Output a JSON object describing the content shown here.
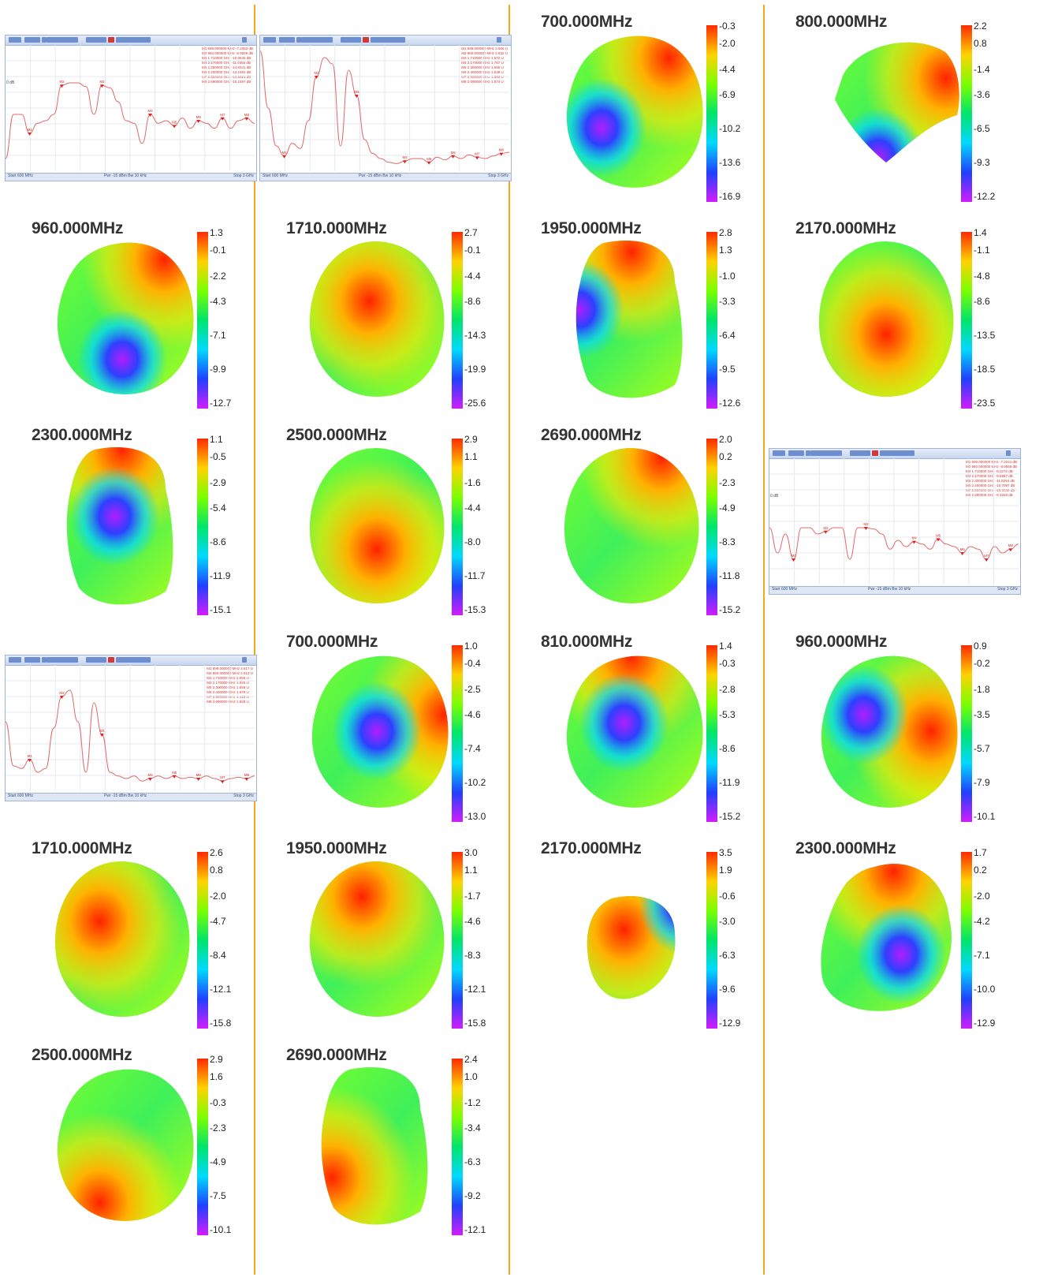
{
  "colorbar_gradient": [
    "#ff2a00",
    "#ffd200",
    "#7bff00",
    "#00e56b",
    "#00d9ff",
    "#2040ff",
    "#d21dff"
  ],
  "separator_color": "#f3a81a",
  "trace_color": "#e06a6a",
  "cells": [
    {
      "kind": "plot",
      "variant": "db",
      "ref": "0 dB",
      "markers": [
        "M1",
        "M2",
        "M3",
        "M4",
        "M5",
        "M6",
        "M7",
        "M8"
      ],
      "mtable": [
        "M1  699.000000 MHz  -7.2353 dB",
        "M2  960.000000 MHz  -6.9326 dB",
        "M3  1.710000 GHz  -10.0545 dB",
        "M4  2.170000 GHz  -11.0356 dB",
        "M5  2.300000 GHz  -14.8341 dB",
        "M6  2.400000 GHz  -13.2481 dB",
        "M7  2.500000 GHz  -13.8521 dB",
        "M8  2.690000 GHz  -15.1597 dB"
      ],
      "status_start": "Start 600 MHz",
      "status_mid": "Pwr -15 dBm  Bw 10 kHz",
      "status_stop": "Stop 3 GHz",
      "trace": [
        0.9,
        0.55,
        0.55,
        0.7,
        0.62,
        0.6,
        0.55,
        0.32,
        0.3,
        0.3,
        0.33,
        0.55,
        0.32,
        0.34,
        0.45,
        0.6,
        0.62,
        0.78,
        0.55,
        0.62,
        0.6,
        0.64,
        0.58,
        0.66,
        0.6,
        0.62,
        0.66,
        0.58,
        0.66,
        0.6,
        0.58,
        0.62
      ]
    },
    {
      "kind": "plot",
      "variant": "swr",
      "ref": "",
      "markers": [
        "M1",
        "M2",
        "M3",
        "M4",
        "M5",
        "M6",
        "M7",
        "M8"
      ],
      "mtable": [
        "M1  699.000000 MHz  2.506 U",
        "M2  960.000000 MHz  2.632 U",
        "M3  1.710000 GHz  1.572 U",
        "M4  2.170000 GHz  1.767 U",
        "M5  2.300000 GHz  1.596 U",
        "M6  2.400000 GHz  1.539 U",
        "M7  2.500000 GHz  1.526 U",
        "M8  2.690000 GHz  1.574 U"
      ],
      "status_start": "Start 600 MHz",
      "status_mid": "Pwr -15 dBm  Bw 10 kHz",
      "status_stop": "Stop 3 GHz",
      "trace": [
        0.05,
        0.5,
        0.8,
        0.88,
        0.78,
        0.82,
        0.6,
        0.25,
        0.1,
        0.15,
        0.8,
        0.2,
        0.4,
        0.75,
        0.86,
        0.9,
        0.93,
        0.94,
        0.92,
        0.9,
        0.9,
        0.93,
        0.89,
        0.91,
        0.88,
        0.9,
        0.87,
        0.89,
        0.9,
        0.88,
        0.86,
        0.85
      ]
    },
    {
      "kind": "pattern",
      "freq": "700.000MHz",
      "ticks": [
        "-0.3",
        "-2.0",
        "-4.4",
        "-6.9",
        "-10.2",
        "-13.6",
        "-16.9"
      ],
      "hot": [
        0.75,
        0.18
      ],
      "cold": [
        0.3,
        0.6
      ],
      "shape": "round"
    },
    {
      "kind": "pattern",
      "freq": "800.000MHz",
      "ticks": [
        "2.2",
        "0.8",
        "-1.4",
        "-3.6",
        "-6.5",
        "-9.3",
        "-12.2"
      ],
      "hot": [
        0.9,
        0.3
      ],
      "cold": [
        0.45,
        0.78
      ],
      "shape": "half"
    },
    {
      "kind": "pattern",
      "freq": "960.000MHz",
      "ticks": [
        "1.3",
        "-0.1",
        "-2.2",
        "-4.3",
        "-7.1",
        "-9.9",
        "-12.7"
      ],
      "hot": [
        0.78,
        0.15
      ],
      "cold": [
        0.5,
        0.75
      ],
      "shape": "round"
    },
    {
      "kind": "pattern",
      "freq": "1710.000MHz",
      "ticks": [
        "2.7",
        "-0.1",
        "-4.4",
        "-8.6",
        "-14.3",
        "-19.9",
        "-25.6"
      ],
      "hot": [
        0.45,
        0.4
      ],
      "cold": null,
      "shape": "egg"
    },
    {
      "kind": "pattern",
      "freq": "1950.000MHz",
      "ticks": [
        "2.8",
        "1.3",
        "-1.0",
        "-3.3",
        "-6.4",
        "-9.5",
        "-12.6"
      ],
      "hot": [
        0.5,
        0.1
      ],
      "cold": [
        0.15,
        0.45
      ],
      "shape": "tall"
    },
    {
      "kind": "pattern",
      "freq": "2170.000MHz",
      "ticks": [
        "1.4",
        "-1.1",
        "-4.8",
        "-8.6",
        "-13.5",
        "-18.5",
        "-23.5"
      ],
      "hot": [
        0.5,
        0.6
      ],
      "cold": null,
      "shape": "egg"
    },
    {
      "kind": "pattern",
      "freq": "2300.000MHz",
      "ticks": [
        "1.1",
        "-0.5",
        "-2.9",
        "-5.4",
        "-8.6",
        "-11.9",
        "-15.1"
      ],
      "hot": [
        0.5,
        0.05
      ],
      "cold": [
        0.45,
        0.45
      ],
      "shape": "tall"
    },
    {
      "kind": "pattern",
      "freq": "2500.000MHz",
      "ticks": [
        "2.9",
        "1.1",
        "-1.6",
        "-4.4",
        "-8.0",
        "-11.7",
        "-15.3"
      ],
      "hot": [
        0.5,
        0.65
      ],
      "cold": null,
      "shape": "egg"
    },
    {
      "kind": "pattern",
      "freq": "2690.000MHz",
      "ticks": [
        "2.0",
        "0.2",
        "-2.3",
        "-4.9",
        "-8.3",
        "-11.8",
        "-15.2"
      ],
      "hot": [
        0.7,
        0.1
      ],
      "cold": null,
      "shape": "egg"
    },
    {
      "kind": "plot",
      "variant": "db",
      "ref": "0 dB",
      "markers": [
        "M1",
        "M2",
        "M3",
        "M4",
        "M5",
        "M6",
        "M7",
        "M8"
      ],
      "mtable": [
        "M1  699.000000 MHz  -7.2241 dB",
        "M2  960.000000 MHz  -8.0558 dB",
        "M3  1.710000 GHz  -8.2272 dB",
        "M4  2.170000 GHz  -9.5867 dB",
        "M5  2.300000 GHz  -11.8294 dB",
        "M6  2.400000 GHz  -10.7097 dB",
        "M7  2.500000 GHz  -15.5036 dB",
        "M8  2.690000 GHz  -9.4258 dB"
      ],
      "status_start": "Start 600 MHz",
      "status_mid": "Pwr -15 dBm  Bw 10 kHz",
      "status_stop": "Stop 3 GHz",
      "trace": [
        0.55,
        0.75,
        0.6,
        0.8,
        0.55,
        0.55,
        0.6,
        0.58,
        0.55,
        0.55,
        0.8,
        0.55,
        0.55,
        0.56,
        0.6,
        0.72,
        0.65,
        0.7,
        0.66,
        0.68,
        0.72,
        0.64,
        0.68,
        0.7,
        0.75,
        0.7,
        0.72,
        0.8,
        0.7,
        0.75,
        0.72,
        0.68
      ]
    },
    {
      "kind": "plot",
      "variant": "swr",
      "ref": "",
      "markers": [
        "M1",
        "M2",
        "M3",
        "M4",
        "M5",
        "M6",
        "M7",
        "M8"
      ],
      "mtable": [
        "M1  699.000000 MHz  2.617 U",
        "M2  960.000000 MHz  2.813 U",
        "M3  1.710000 GHz  2.056 U",
        "M4  2.170000 GHz  1.926 U",
        "M5  2.300000 GHz  1.656 U",
        "M6  2.400000 GHz  1.679 U",
        "M7  2.500000 GHz  1.415 U",
        "M8  2.690000 GHz  1.828 U"
      ],
      "status_start": "Start 600 MHz",
      "status_mid": "Pwr -15 dBm  Bw 10 kHz",
      "status_stop": "Stop 3 GHz",
      "trace": [
        0.45,
        0.8,
        0.82,
        0.75,
        0.85,
        0.82,
        0.5,
        0.25,
        0.2,
        0.45,
        0.85,
        0.3,
        0.55,
        0.85,
        0.88,
        0.9,
        0.88,
        0.92,
        0.9,
        0.88,
        0.9,
        0.88,
        0.9,
        0.89,
        0.9,
        0.88,
        0.9,
        0.92,
        0.9,
        0.89,
        0.9,
        0.88
      ]
    },
    {
      "kind": "pattern",
      "freq": "700.000MHz",
      "ticks": [
        "1.0",
        "-0.4",
        "-2.5",
        "-4.6",
        "-7.4",
        "-10.2",
        "-13.0"
      ],
      "hot": [
        0.95,
        0.4
      ],
      "cold": [
        0.5,
        0.5
      ],
      "shape": "round"
    },
    {
      "kind": "pattern",
      "freq": "810.000MHz",
      "ticks": [
        "1.4",
        "-0.3",
        "-2.8",
        "-5.3",
        "-8.6",
        "-11.9",
        "-15.2"
      ],
      "hot": [
        0.5,
        0.05
      ],
      "cold": [
        0.45,
        0.45
      ],
      "shape": "round"
    },
    {
      "kind": "pattern",
      "freq": "960.000MHz",
      "ticks": [
        "0.9",
        "-0.2",
        "-1.8",
        "-3.5",
        "-5.7",
        "-7.9",
        "-10.1"
      ],
      "hot": [
        0.8,
        0.5
      ],
      "cold": [
        0.35,
        0.4
      ],
      "shape": "round"
    },
    {
      "kind": "pattern",
      "freq": "1710.000MHz",
      "ticks": [
        "2.6",
        "0.8",
        "-2.0",
        "-4.7",
        "-8.4",
        "-12.1",
        "-15.8"
      ],
      "hot": [
        0.35,
        0.4
      ],
      "cold": null,
      "shape": "egg"
    },
    {
      "kind": "pattern",
      "freq": "1950.000MHz",
      "ticks": [
        "3.0",
        "1.1",
        "-1.7",
        "-4.6",
        "-8.3",
        "-12.1",
        "-15.8"
      ],
      "hot": [
        0.4,
        0.25
      ],
      "cold": null,
      "shape": "egg"
    },
    {
      "kind": "pattern",
      "freq": "2170.000MHz",
      "ticks": [
        "3.5",
        "1.9",
        "-0.6",
        "-3.0",
        "-6.3",
        "-9.6",
        "-12.9"
      ],
      "hot": [
        0.45,
        0.45
      ],
      "cold": [
        0.85,
        0.3
      ],
      "shape": "small"
    },
    {
      "kind": "pattern",
      "freq": "2300.000MHz",
      "ticks": [
        "1.7",
        "0.2",
        "-2.0",
        "-4.2",
        "-7.1",
        "-10.0",
        "-12.9"
      ],
      "hot": [
        0.55,
        0.1
      ],
      "cold": [
        0.6,
        0.6
      ],
      "shape": "wide"
    },
    {
      "kind": "pattern",
      "freq": "2500.000MHz",
      "ticks": [
        "2.9",
        "1.6",
        "-0.3",
        "-2.3",
        "-4.9",
        "-7.5",
        "-10.1"
      ],
      "hot": [
        0.35,
        0.85
      ],
      "cold": null,
      "shape": "round"
    },
    {
      "kind": "pattern",
      "freq": "2690.000MHz",
      "ticks": [
        "2.4",
        "1.0",
        "-1.2",
        "-3.4",
        "-6.3",
        "-9.2",
        "-12.1"
      ],
      "hot": [
        0.2,
        0.7
      ],
      "cold": null,
      "shape": "tall"
    }
  ]
}
